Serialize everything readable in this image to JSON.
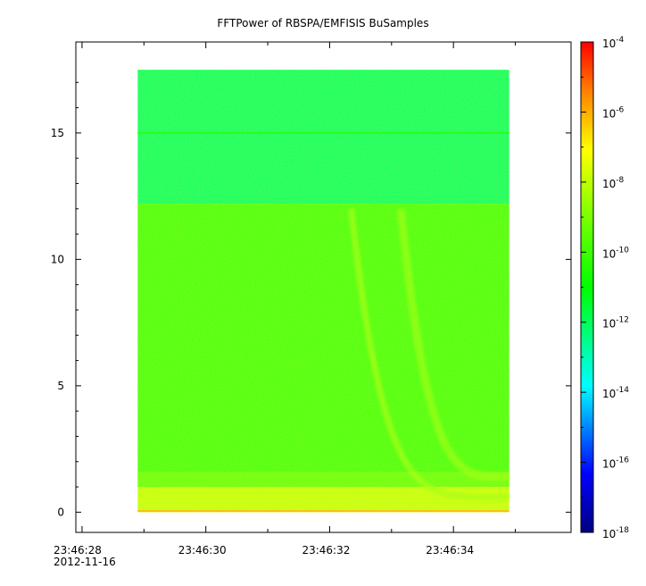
{
  "chart_data": {
    "type": "heatmap",
    "title": "FFTPower of RBSPA/EMFISIS  BuSamples",
    "xlabel": "",
    "ylabel": "",
    "x_axis": {
      "type": "time",
      "date_label": "2012-11-16",
      "range": [
        "23:46:27.9",
        "23:46:35.9"
      ],
      "major_ticks": [
        "23:46:28",
        "23:46:30",
        "23:46:32",
        "23:46:34"
      ]
    },
    "y_axis": {
      "range": [
        -0.8,
        18.6
      ],
      "ticks": [
        0,
        5,
        10,
        15
      ]
    },
    "colorbar": {
      "scale": "log",
      "range": [
        1e-18,
        0.0001
      ],
      "colormap": "rainbow (blue-cyan-green-yellow-red)",
      "ticks": [
        {
          "base": "10",
          "exp": "-4"
        },
        {
          "base": "10",
          "exp": "-6"
        },
        {
          "base": "10",
          "exp": "-8"
        },
        {
          "base": "10",
          "exp": "-10"
        },
        {
          "base": "10",
          "exp": "-12"
        },
        {
          "base": "10",
          "exp": "-14"
        },
        {
          "base": "10",
          "exp": "-16"
        },
        {
          "base": "10",
          "exp": "-18"
        }
      ]
    },
    "data_extent": {
      "time": [
        "23:46:28.9",
        "23:46:34.9"
      ],
      "y": [
        0,
        17.5
      ]
    },
    "features": [
      {
        "description": "background power above 12.2",
        "log10_power": -12
      },
      {
        "description": "background power 1 to 12.2",
        "log10_power": -10
      },
      {
        "description": "low-y band 0 to 1",
        "log10_power": -8
      },
      {
        "description": "narrow line at 15.0",
        "log10_power": -11
      }
    ],
    "colors": {
      "background_high": "#1ee66e",
      "background_mid": "#3ce13c",
      "low_band": "#f0e628",
      "frame": "#000000"
    }
  }
}
